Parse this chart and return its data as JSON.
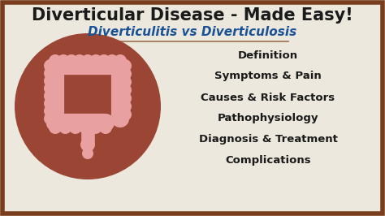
{
  "title": "Diverticular Disease - Made Easy!",
  "subtitle": "Diverticulitis vs Diverticulosis",
  "menu_items": [
    "Definition",
    "Symptoms & Pain",
    "Causes & Risk Factors",
    "Pathophysiology",
    "Diagnosis & Treatment",
    "Complications"
  ],
  "bg_color": "#ede8de",
  "border_color": "#7a3e1e",
  "title_color": "#1a1a1a",
  "subtitle_color": "#1a5296",
  "menu_color": "#1a1a1a",
  "ellipse_fill": "#9b4535",
  "colon_color": "#e8a0a0",
  "colon_dark": "#d07070",
  "divider_color": "#9b7050",
  "title_fontsize": 15,
  "subtitle_fontsize": 11,
  "menu_fontsize": 9.5
}
